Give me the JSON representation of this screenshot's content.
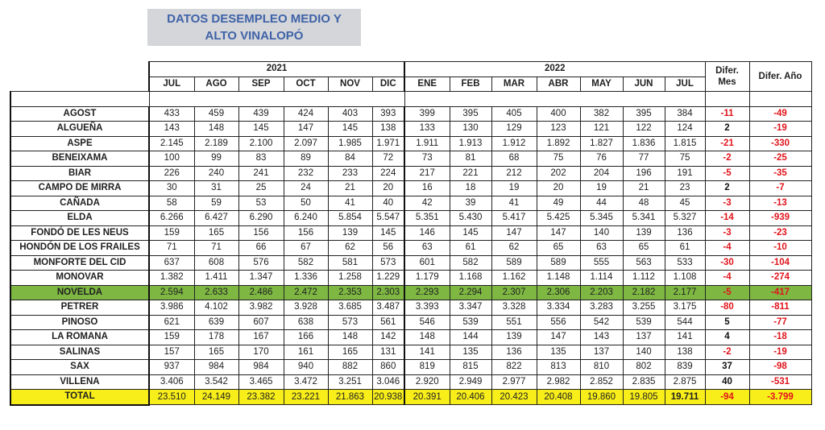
{
  "title": {
    "line1": "DATOS  DESEMPLEO MEDIO Y",
    "line2": "ALTO VINALOPÓ"
  },
  "years": {
    "y2021": "2021",
    "y2022": "2022"
  },
  "diff_headers": {
    "mes_line1": "Difer.",
    "mes_line2": "Mes",
    "ano": "Difer. Año"
  },
  "months_2021": [
    "JUL",
    "AGO",
    "SEP",
    "OCT",
    "NOV",
    "DIC"
  ],
  "months_2022": [
    "ENE",
    "FEB",
    "MAR",
    "ABR",
    "MAY",
    "JUN",
    "JUL"
  ],
  "rows": [
    {
      "name": "AGOST",
      "v2021": [
        "433",
        "459",
        "439",
        "424",
        "403",
        "393"
      ],
      "v2022": [
        "399",
        "395",
        "405",
        "400",
        "382",
        "395",
        "384"
      ],
      "dmes": "-11",
      "dano": "-49"
    },
    {
      "name": "ALGUEÑA",
      "v2021": [
        "143",
        "148",
        "145",
        "147",
        "145",
        "138"
      ],
      "v2022": [
        "133",
        "130",
        "129",
        "123",
        "121",
        "122",
        "124"
      ],
      "dmes": "2",
      "dano": "-19"
    },
    {
      "name": "ASPE",
      "v2021": [
        "2.145",
        "2.189",
        "2.100",
        "2.097",
        "1.985",
        "1.971"
      ],
      "v2022": [
        "1.911",
        "1.913",
        "1.912",
        "1.892",
        "1.827",
        "1.836",
        "1.815"
      ],
      "dmes": "-21",
      "dano": "-330"
    },
    {
      "name": "BENEIXAMA",
      "v2021": [
        "100",
        "99",
        "83",
        "89",
        "84",
        "72"
      ],
      "v2022": [
        "73",
        "81",
        "68",
        "75",
        "76",
        "77",
        "75"
      ],
      "dmes": "-2",
      "dano": "-25"
    },
    {
      "name": "BIAR",
      "v2021": [
        "226",
        "240",
        "241",
        "232",
        "233",
        "224"
      ],
      "v2022": [
        "217",
        "221",
        "212",
        "202",
        "204",
        "196",
        "191"
      ],
      "dmes": "-5",
      "dano": "-35"
    },
    {
      "name": "CAMPO DE MIRRA",
      "v2021": [
        "30",
        "31",
        "25",
        "24",
        "21",
        "20"
      ],
      "v2022": [
        "16",
        "18",
        "19",
        "20",
        "19",
        "21",
        "23"
      ],
      "dmes": "2",
      "dano": "-7"
    },
    {
      "name": "CAÑADA",
      "v2021": [
        "58",
        "59",
        "53",
        "50",
        "41",
        "40"
      ],
      "v2022": [
        "42",
        "39",
        "41",
        "49",
        "44",
        "48",
        "45"
      ],
      "dmes": "-3",
      "dano": "-13"
    },
    {
      "name": "ELDA",
      "v2021": [
        "6.266",
        "6.427",
        "6.290",
        "6.240",
        "5.854",
        "5.547"
      ],
      "v2022": [
        "5.351",
        "5.430",
        "5.417",
        "5.425",
        "5.345",
        "5.341",
        "5.327"
      ],
      "dmes": "-14",
      "dano": "-939"
    },
    {
      "name": "FONDÓ DE LES NEUS",
      "v2021": [
        "159",
        "165",
        "156",
        "156",
        "139",
        "145"
      ],
      "v2022": [
        "146",
        "145",
        "147",
        "147",
        "140",
        "139",
        "136"
      ],
      "dmes": "-3",
      "dano": "-23"
    },
    {
      "name": "HONDÓN DE LOS FRAILES",
      "v2021": [
        "71",
        "71",
        "66",
        "67",
        "62",
        "56"
      ],
      "v2022": [
        "63",
        "61",
        "62",
        "65",
        "63",
        "65",
        "61"
      ],
      "dmes": "-4",
      "dano": "-10"
    },
    {
      "name": "MONFORTE DEL CID",
      "v2021": [
        "637",
        "608",
        "576",
        "582",
        "581",
        "573"
      ],
      "v2022": [
        "601",
        "582",
        "589",
        "589",
        "555",
        "563",
        "533"
      ],
      "dmes": "-30",
      "dano": "-104"
    },
    {
      "name": "MONOVAR",
      "v2021": [
        "1.382",
        "1.411",
        "1.347",
        "1.336",
        "1.258",
        "1.229"
      ],
      "v2022": [
        "1.179",
        "1.168",
        "1.162",
        "1.148",
        "1.114",
        "1.112",
        "1.108"
      ],
      "dmes": "-4",
      "dano": "-274"
    },
    {
      "name": "NOVELDA",
      "v2021": [
        "2.594",
        "2.633",
        "2.486",
        "2.472",
        "2.353",
        "2.303"
      ],
      "v2022": [
        "2.293",
        "2.294",
        "2.307",
        "2.306",
        "2.203",
        "2.182",
        "2.177"
      ],
      "dmes": "-5",
      "dano": "-417",
      "highlight": true
    },
    {
      "name": "PETRER",
      "v2021": [
        "3.986",
        "4.102",
        "3.982",
        "3.928",
        "3.685",
        "3.487"
      ],
      "v2022": [
        "3.393",
        "3.347",
        "3.328",
        "3.334",
        "3.283",
        "3.255",
        "3.175"
      ],
      "dmes": "-80",
      "dano": "-811"
    },
    {
      "name": "PINOSO",
      "v2021": [
        "621",
        "639",
        "607",
        "638",
        "573",
        "561"
      ],
      "v2022": [
        "546",
        "539",
        "551",
        "556",
        "542",
        "539",
        "544"
      ],
      "dmes": "5",
      "dano": "-77"
    },
    {
      "name": "LA ROMANA",
      "v2021": [
        "159",
        "178",
        "167",
        "166",
        "148",
        "142"
      ],
      "v2022": [
        "148",
        "144",
        "139",
        "147",
        "143",
        "137",
        "141"
      ],
      "dmes": "4",
      "dano": "-18"
    },
    {
      "name": "SALINAS",
      "v2021": [
        "157",
        "165",
        "170",
        "161",
        "165",
        "131"
      ],
      "v2022": [
        "141",
        "135",
        "136",
        "135",
        "137",
        "140",
        "138"
      ],
      "dmes": "-2",
      "dano": "-19"
    },
    {
      "name": "SAX",
      "v2021": [
        "937",
        "984",
        "984",
        "940",
        "882",
        "860"
      ],
      "v2022": [
        "819",
        "815",
        "822",
        "813",
        "810",
        "802",
        "839"
      ],
      "dmes": "37",
      "dano": "-98"
    },
    {
      "name": "VILLENA",
      "v2021": [
        "3.406",
        "3.542",
        "3.465",
        "3.472",
        "3.251",
        "3.046"
      ],
      "v2022": [
        "2.920",
        "2.949",
        "2.977",
        "2.982",
        "2.852",
        "2.835",
        "2.875"
      ],
      "dmes": "40",
      "dano": "-531"
    }
  ],
  "total": {
    "name": "TOTAL",
    "v2021": [
      "23.510",
      "24.149",
      "23.382",
      "23.221",
      "21.863",
      "20.938"
    ],
    "v2022": [
      "20.391",
      "20.406",
      "20.423",
      "20.408",
      "19.860",
      "19.805",
      "19.711"
    ],
    "dmes": "-94",
    "dano": "-3.799"
  },
  "colors": {
    "title_bg": "#d4d6d9",
    "title_text": "#3f62a8",
    "highlight_row": "#7eb843",
    "total_row": "#f8ee1a",
    "negative": "#e0141b"
  }
}
